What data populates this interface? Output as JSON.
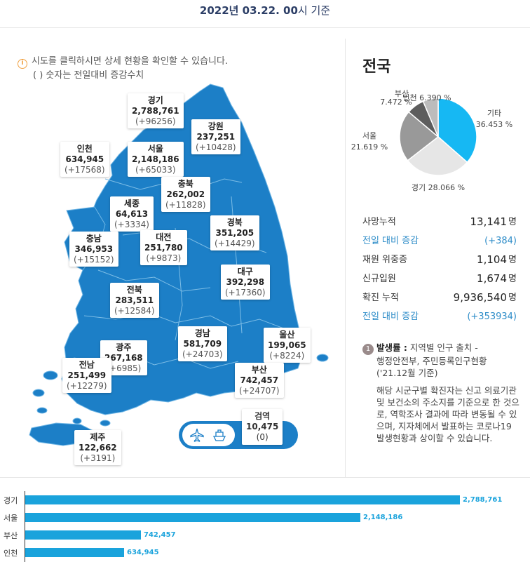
{
  "header": {
    "date": "2022년 03.22. 00",
    "suffix": "시 기준"
  },
  "notice": {
    "line1": "시도를 클릭하시면 상세 현황을 확인할 수 있습니다.",
    "line2": "( ) 숫자는 전일대비 증감수치"
  },
  "regions": {
    "gyeonggi": {
      "name": "경기",
      "count": "2,788,761",
      "delta": "(+96256)"
    },
    "gangwon": {
      "name": "강원",
      "count": "237,251",
      "delta": "(+10428)"
    },
    "incheon": {
      "name": "인천",
      "count": "634,945",
      "delta": "(+17568)"
    },
    "seoul": {
      "name": "서울",
      "count": "2,148,186",
      "delta": "(+65033)"
    },
    "chungbuk": {
      "name": "충북",
      "count": "262,002",
      "delta": "(+11828)"
    },
    "sejong": {
      "name": "세종",
      "count": "64,613",
      "delta": "(+3334)"
    },
    "gyeongbuk": {
      "name": "경북",
      "count": "351,205",
      "delta": "(+14429)"
    },
    "chungnam": {
      "name": "충남",
      "count": "346,953",
      "delta": "(+15152)"
    },
    "daejeon": {
      "name": "대전",
      "count": "251,780",
      "delta": "(+9873)"
    },
    "daegu": {
      "name": "대구",
      "count": "392,298",
      "delta": "(+17360)"
    },
    "jeonbuk": {
      "name": "전북",
      "count": "283,511",
      "delta": "(+12584)"
    },
    "gyeongnam": {
      "name": "경남",
      "count": "581,709",
      "delta": "(+24703)"
    },
    "ulsan": {
      "name": "울산",
      "count": "199,065",
      "delta": "(+8224)"
    },
    "gwangju": {
      "name": "광주",
      "count": "267,168",
      "delta": "(+6985)"
    },
    "jeonnam": {
      "name": "전남",
      "count": "251,499",
      "delta": "(+12279)"
    },
    "busan": {
      "name": "부산",
      "count": "742,457",
      "delta": "(+24707)"
    },
    "jeju": {
      "name": "제주",
      "count": "122,662",
      "delta": "(+3191)"
    },
    "quarantine": {
      "name": "검역",
      "count": "10,475",
      "delta": "(0)"
    }
  },
  "nation": {
    "title": "전국",
    "pie": {
      "slices": [
        {
          "name": "기타",
          "pct": 36.453,
          "label": "기타",
          "pct_label": "36.453 %",
          "color": "#16b8f3"
        },
        {
          "name": "경기",
          "pct": 28.066,
          "label": "경기 28.066 %",
          "color": "#e6e6e6"
        },
        {
          "name": "서울",
          "pct": 21.619,
          "label": "서울",
          "pct_label": "21.619 %",
          "color": "#999999"
        },
        {
          "name": "부산",
          "pct": 7.472,
          "label": "7.472 %",
          "color": "#5d5d5d"
        },
        {
          "name": "인천",
          "pct": 6.39,
          "label": "인천 6.390 %",
          "color": "#bcbcbc"
        }
      ],
      "overlap_label": "부산"
    },
    "stats": [
      {
        "label": "사망누적",
        "value": "13,141",
        "unit": "명",
        "blue": false
      },
      {
        "label": "전일 대비 증감",
        "value": "(+384)",
        "unit": "",
        "blue": true
      },
      {
        "label": "재원 위중증",
        "value": "1,104",
        "unit": "명",
        "blue": false
      },
      {
        "label": "신규입원",
        "value": "1,674",
        "unit": "명",
        "blue": false
      },
      {
        "label": "확진 누적",
        "value": "9,936,540",
        "unit": "명",
        "blue": false
      },
      {
        "label": "전일 대비 증감",
        "value": "(+353934)",
        "unit": "",
        "blue": true
      }
    ]
  },
  "note": {
    "num": "1",
    "title": "발생률 :",
    "line1": "지역별 인구 출치 -",
    "line2": "행정안전부, 주민등록인구현황",
    "line3": "('21.12월 기준)",
    "body": "해당 시군구별 확진자는 신고 의료기관 및 보건소의 주소지를 기준으로 한 것으로, 역학조사 결과에 따라 변동될 수 있으며, 지자체에서 발표하는 코로나19 발생현황과 상이할 수 있습니다."
  },
  "colors": {
    "map": "#1c7fc7",
    "bar": "#1aa3dc",
    "accent": "#2d8cc8"
  },
  "bar_chart": {
    "rows": [
      {
        "label": "경기",
        "value": 2788761,
        "value_label": "2,788,761"
      },
      {
        "label": "서울",
        "value": 2148186,
        "value_label": "2,148,186"
      },
      {
        "label": "부산",
        "value": 742457,
        "value_label": "742,457"
      },
      {
        "label": "인천",
        "value": 634945,
        "value_label": "634,945"
      }
    ]
  }
}
